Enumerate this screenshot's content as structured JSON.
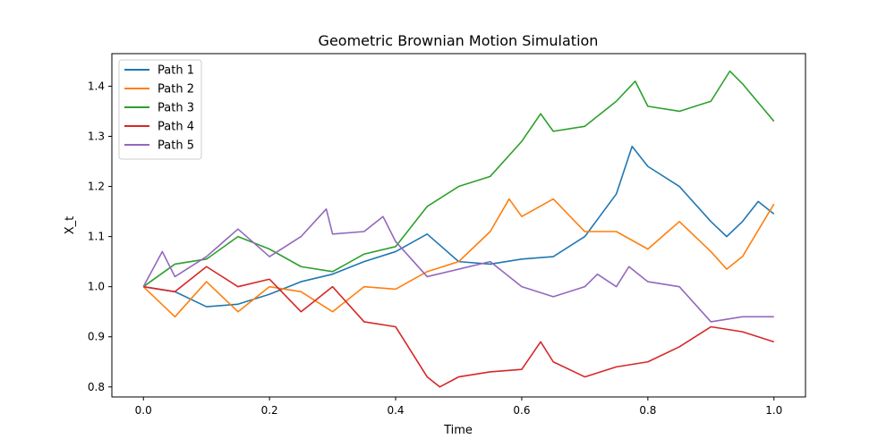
{
  "chart_data": {
    "type": "line",
    "title": "Geometric Brownian Motion Simulation",
    "xlabel": "Time",
    "ylabel": "X_t",
    "xlim": [
      -0.05,
      1.05
    ],
    "ylim": [
      0.78,
      1.465
    ],
    "xticks": [
      0.0,
      0.2,
      0.4,
      0.6,
      0.8,
      1.0
    ],
    "xtick_labels": [
      "0.0",
      "0.2",
      "0.4",
      "0.6",
      "0.8",
      "1.0"
    ],
    "yticks": [
      0.8,
      0.9,
      1.0,
      1.1,
      1.2,
      1.3,
      1.4
    ],
    "ytick_labels": [
      "0.8",
      "0.9",
      "1.0",
      "1.1",
      "1.2",
      "1.3",
      "1.4"
    ],
    "grid": false,
    "legend_position": "top-left",
    "series": [
      {
        "name": "Path 1",
        "color": "#1f77b4",
        "points": [
          [
            0.0,
            1.0
          ],
          [
            0.05,
            0.99
          ],
          [
            0.1,
            0.96
          ],
          [
            0.15,
            0.965
          ],
          [
            0.2,
            0.985
          ],
          [
            0.25,
            1.01
          ],
          [
            0.3,
            1.025
          ],
          [
            0.35,
            1.05
          ],
          [
            0.4,
            1.07
          ],
          [
            0.45,
            1.105
          ],
          [
            0.5,
            1.05
          ],
          [
            0.55,
            1.045
          ],
          [
            0.6,
            1.055
          ],
          [
            0.65,
            1.06
          ],
          [
            0.7,
            1.1
          ],
          [
            0.75,
            1.185
          ],
          [
            0.775,
            1.28
          ],
          [
            0.8,
            1.24
          ],
          [
            0.85,
            1.2
          ],
          [
            0.9,
            1.13
          ],
          [
            0.925,
            1.1
          ],
          [
            0.95,
            1.13
          ],
          [
            0.975,
            1.17
          ],
          [
            1.0,
            1.145
          ]
        ]
      },
      {
        "name": "Path 2",
        "color": "#ff7f0e",
        "points": [
          [
            0.0,
            1.0
          ],
          [
            0.05,
            0.94
          ],
          [
            0.1,
            1.01
          ],
          [
            0.15,
            0.95
          ],
          [
            0.2,
            1.0
          ],
          [
            0.25,
            0.99
          ],
          [
            0.3,
            0.95
          ],
          [
            0.35,
            1.0
          ],
          [
            0.4,
            0.995
          ],
          [
            0.45,
            1.03
          ],
          [
            0.5,
            1.05
          ],
          [
            0.55,
            1.11
          ],
          [
            0.58,
            1.175
          ],
          [
            0.6,
            1.14
          ],
          [
            0.65,
            1.175
          ],
          [
            0.7,
            1.11
          ],
          [
            0.75,
            1.11
          ],
          [
            0.8,
            1.075
          ],
          [
            0.85,
            1.13
          ],
          [
            0.9,
            1.07
          ],
          [
            0.925,
            1.035
          ],
          [
            0.95,
            1.06
          ],
          [
            1.0,
            1.165
          ]
        ]
      },
      {
        "name": "Path 3",
        "color": "#2ca02c",
        "points": [
          [
            0.0,
            1.0
          ],
          [
            0.05,
            1.045
          ],
          [
            0.1,
            1.055
          ],
          [
            0.15,
            1.1
          ],
          [
            0.2,
            1.075
          ],
          [
            0.25,
            1.04
          ],
          [
            0.3,
            1.03
          ],
          [
            0.35,
            1.065
          ],
          [
            0.4,
            1.08
          ],
          [
            0.45,
            1.16
          ],
          [
            0.5,
            1.2
          ],
          [
            0.55,
            1.22
          ],
          [
            0.6,
            1.29
          ],
          [
            0.63,
            1.345
          ],
          [
            0.65,
            1.31
          ],
          [
            0.7,
            1.32
          ],
          [
            0.75,
            1.37
          ],
          [
            0.78,
            1.41
          ],
          [
            0.8,
            1.36
          ],
          [
            0.85,
            1.35
          ],
          [
            0.9,
            1.37
          ],
          [
            0.93,
            1.43
          ],
          [
            0.95,
            1.405
          ],
          [
            1.0,
            1.33
          ]
        ]
      },
      {
        "name": "Path 4",
        "color": "#d62728",
        "points": [
          [
            0.0,
            1.0
          ],
          [
            0.05,
            0.99
          ],
          [
            0.1,
            1.04
          ],
          [
            0.15,
            1.0
          ],
          [
            0.2,
            1.015
          ],
          [
            0.25,
            0.95
          ],
          [
            0.3,
            1.0
          ],
          [
            0.35,
            0.93
          ],
          [
            0.4,
            0.92
          ],
          [
            0.45,
            0.82
          ],
          [
            0.47,
            0.8
          ],
          [
            0.5,
            0.82
          ],
          [
            0.55,
            0.83
          ],
          [
            0.6,
            0.835
          ],
          [
            0.63,
            0.89
          ],
          [
            0.65,
            0.85
          ],
          [
            0.7,
            0.82
          ],
          [
            0.75,
            0.84
          ],
          [
            0.8,
            0.85
          ],
          [
            0.85,
            0.88
          ],
          [
            0.9,
            0.92
          ],
          [
            0.95,
            0.91
          ],
          [
            1.0,
            0.89
          ]
        ]
      },
      {
        "name": "Path 5",
        "color": "#9467bd",
        "points": [
          [
            0.0,
            1.0
          ],
          [
            0.03,
            1.07
          ],
          [
            0.05,
            1.02
          ],
          [
            0.1,
            1.06
          ],
          [
            0.15,
            1.115
          ],
          [
            0.2,
            1.06
          ],
          [
            0.25,
            1.1
          ],
          [
            0.29,
            1.155
          ],
          [
            0.3,
            1.105
          ],
          [
            0.35,
            1.11
          ],
          [
            0.38,
            1.14
          ],
          [
            0.4,
            1.09
          ],
          [
            0.45,
            1.02
          ],
          [
            0.5,
            1.035
          ],
          [
            0.55,
            1.05
          ],
          [
            0.6,
            1.0
          ],
          [
            0.65,
            0.98
          ],
          [
            0.7,
            1.0
          ],
          [
            0.72,
            1.025
          ],
          [
            0.75,
            1.0
          ],
          [
            0.77,
            1.04
          ],
          [
            0.8,
            1.01
          ],
          [
            0.85,
            1.0
          ],
          [
            0.9,
            0.93
          ],
          [
            0.95,
            0.94
          ],
          [
            1.0,
            0.94
          ]
        ]
      }
    ]
  }
}
